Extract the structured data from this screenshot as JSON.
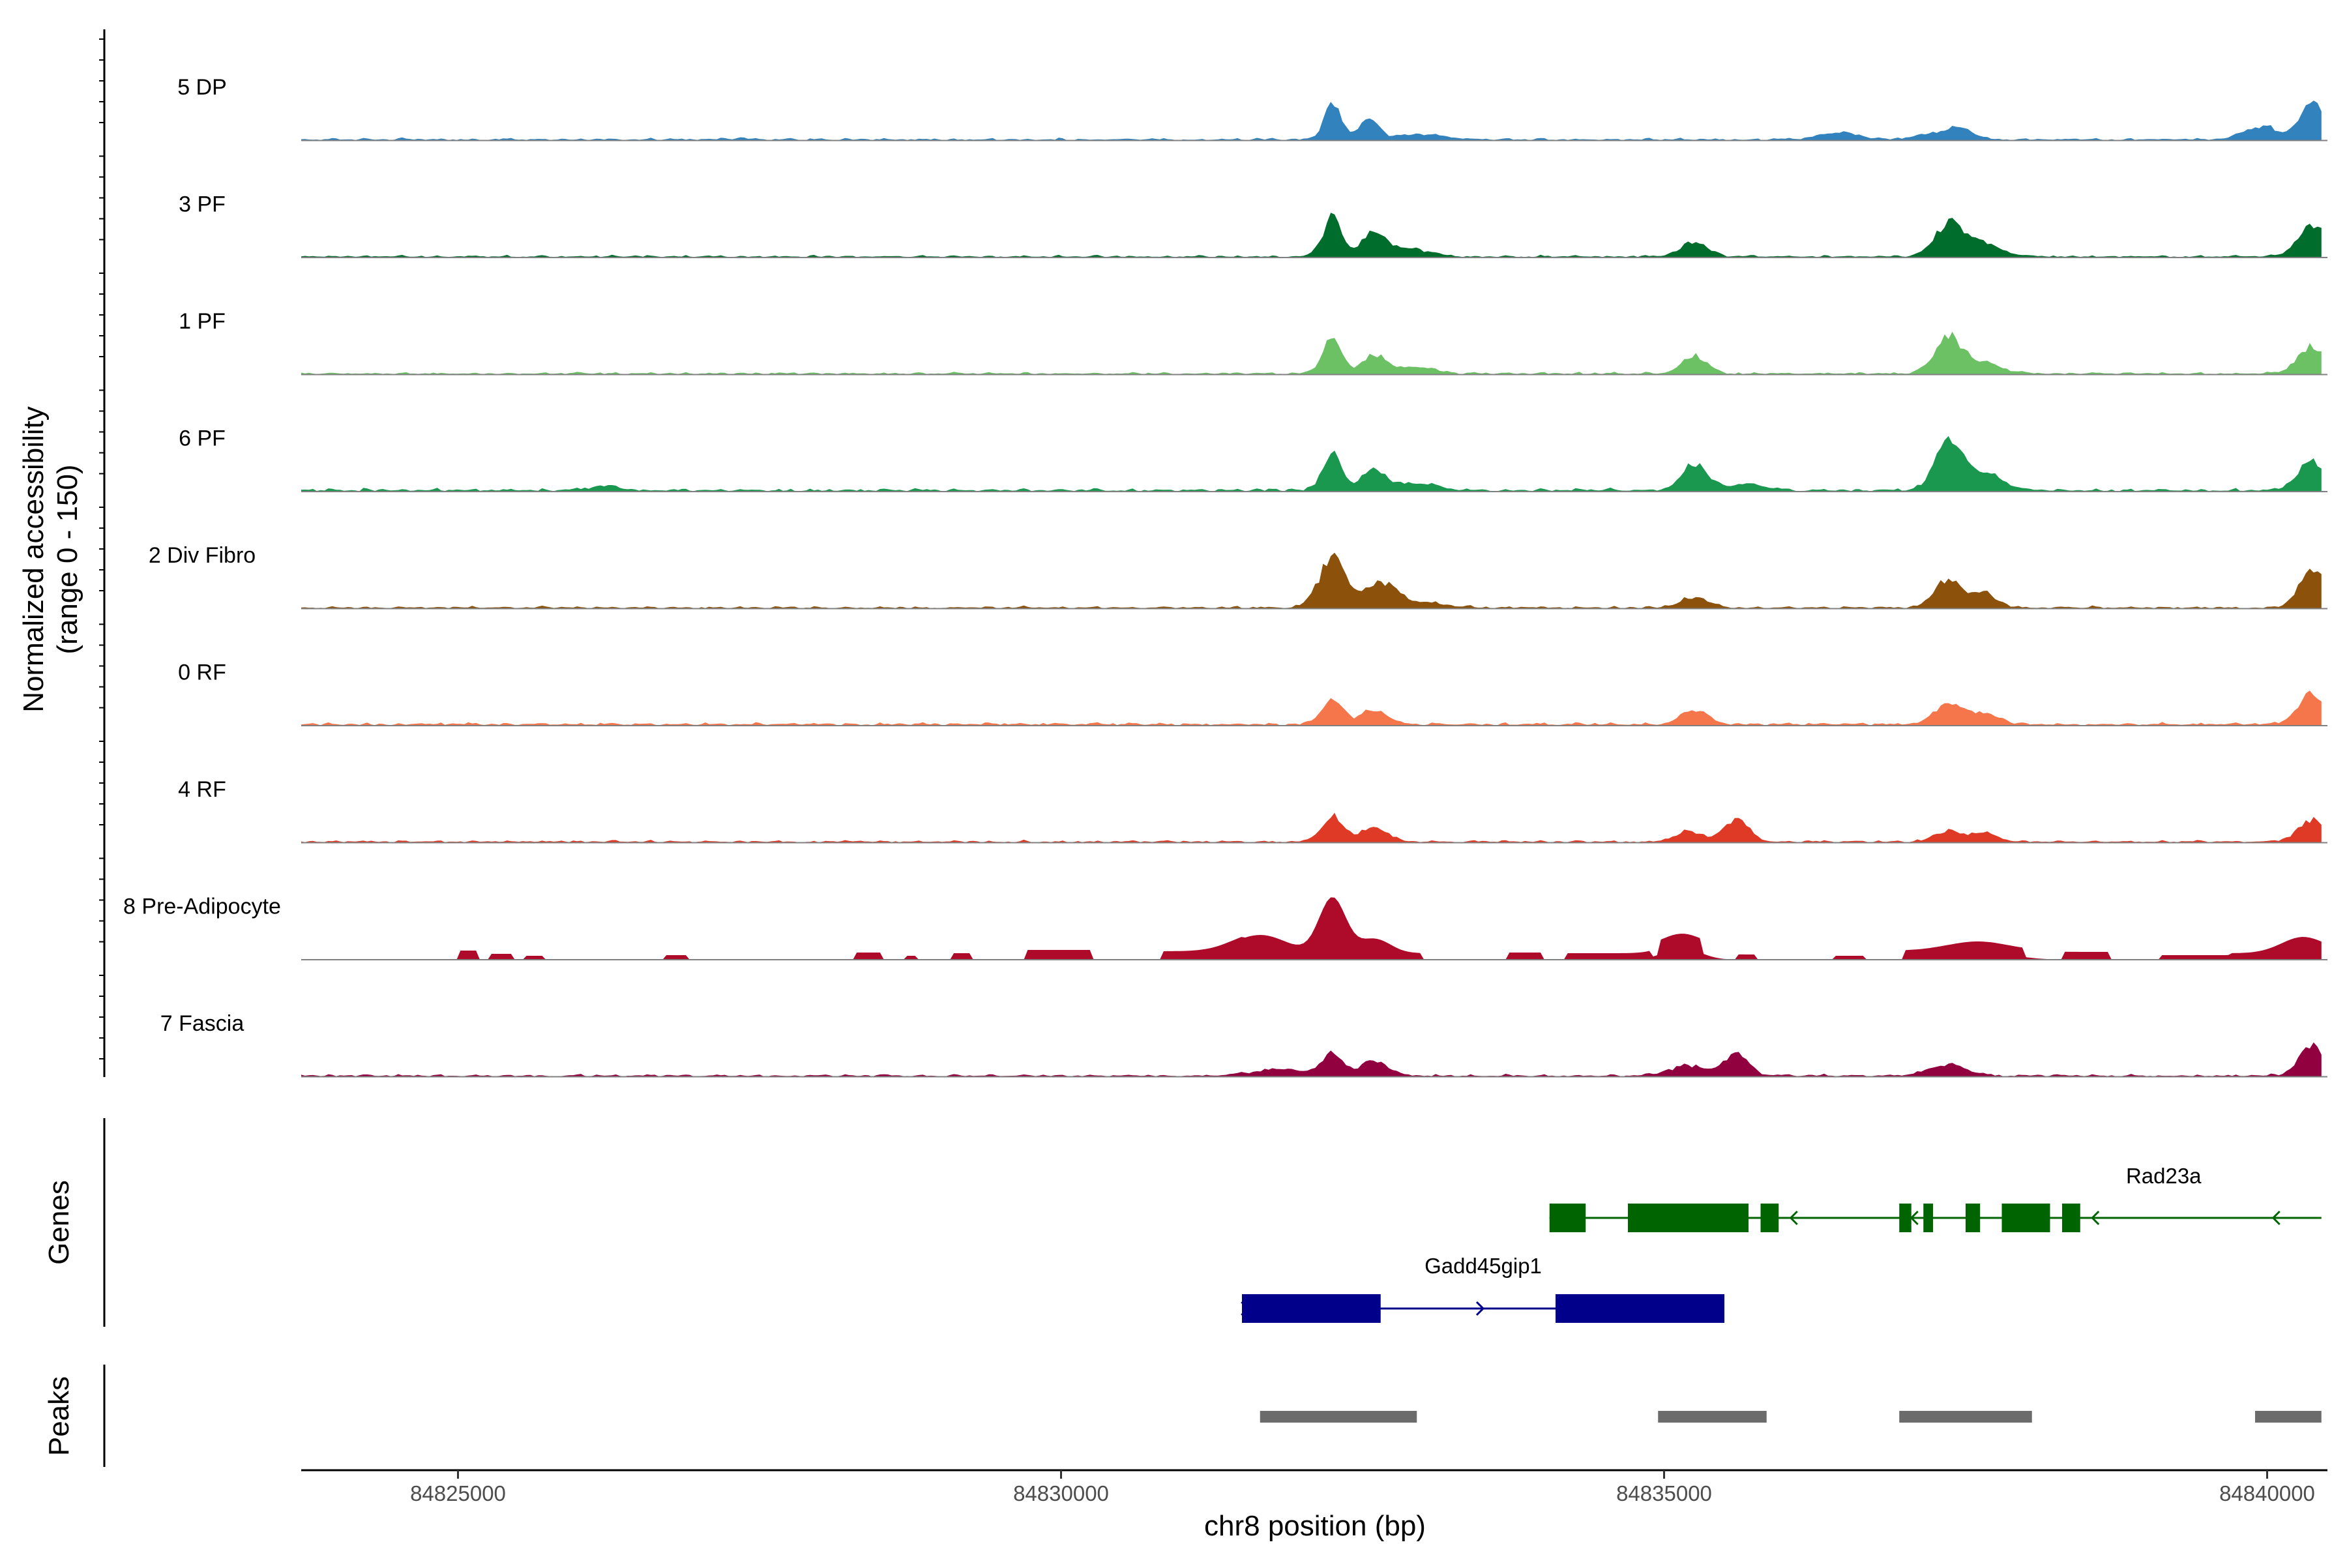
{
  "chart_data": {
    "type": "area",
    "title": "",
    "xlabel": "chr8 position (bp)",
    "ylabel_line1": "Normalized accessibility",
    "ylabel_line2": "(range 0 - 150)",
    "ylim": [
      0,
      150
    ],
    "xlim": [
      84823700,
      84840500
    ],
    "xticks": [
      84825000,
      84830000,
      84835000,
      84840000
    ],
    "xtick_labels": [
      "84825000",
      "84830000",
      "84835000",
      "84840000"
    ],
    "region_start": 84823700,
    "region_end": 84840450,
    "tracks": [
      {
        "name": "5 DP",
        "color": "#3182bd",
        "base": 3,
        "bumps": [
          [
            84827300,
            2,
            90
          ],
          [
            84832250,
            55,
            70
          ],
          [
            84832550,
            28,
            90
          ],
          [
            84833000,
            8,
            200
          ],
          [
            84836450,
            11,
            160
          ],
          [
            84837450,
            17,
            110
          ],
          [
            84837200,
            8,
            140
          ],
          [
            84839950,
            20,
            140
          ],
          [
            84840380,
            60,
            100
          ]
        ]
      },
      {
        "name": "3 PF",
        "color": "#006d2c",
        "base": 3,
        "bumps": [
          [
            84832250,
            60,
            80
          ],
          [
            84832600,
            38,
            100
          ],
          [
            84832900,
            12,
            150
          ],
          [
            84835250,
            22,
            110
          ],
          [
            84837350,
            45,
            110
          ],
          [
            84837600,
            22,
            170
          ],
          [
            84840380,
            48,
            120
          ]
        ]
      },
      {
        "name": "1 PF",
        "color": "#6cc165",
        "base": 3,
        "bumps": [
          [
            84832250,
            55,
            80
          ],
          [
            84832600,
            28,
            100
          ],
          [
            84832950,
            10,
            150
          ],
          [
            84835250,
            28,
            100
          ],
          [
            84837350,
            50,
            110
          ],
          [
            84837600,
            18,
            170
          ],
          [
            84840380,
            42,
            120
          ]
        ]
      },
      {
        "name": "6 PF",
        "color": "#1a9850",
        "base": 4,
        "bumps": [
          [
            84826200,
            6,
            120
          ],
          [
            84832250,
            55,
            80
          ],
          [
            84832600,
            33,
            100
          ],
          [
            84832950,
            11,
            150
          ],
          [
            84835250,
            40,
            110
          ],
          [
            84835700,
            10,
            140
          ],
          [
            84837350,
            70,
            110
          ],
          [
            84837650,
            28,
            150
          ],
          [
            84840380,
            45,
            120
          ]
        ]
      },
      {
        "name": "2 Div Fibro",
        "color": "#8c510a",
        "base": 3,
        "bumps": [
          [
            84832250,
            75,
            110
          ],
          [
            84832650,
            38,
            130
          ],
          [
            84833000,
            8,
            180
          ],
          [
            84835250,
            16,
            120
          ],
          [
            84837350,
            42,
            110
          ],
          [
            84837650,
            22,
            110
          ],
          [
            84840380,
            60,
            110
          ]
        ]
      },
      {
        "name": "0 RF",
        "color": "#f4764a",
        "base": 4,
        "bumps": [
          [
            84832250,
            38,
            90
          ],
          [
            84832600,
            22,
            110
          ],
          [
            84835250,
            22,
            110
          ],
          [
            84837350,
            32,
            110
          ],
          [
            84837650,
            18,
            120
          ],
          [
            84840380,
            45,
            120
          ]
        ]
      },
      {
        "name": "4 RF",
        "color": "#de3a26",
        "base": 3,
        "bumps": [
          [
            84832250,
            40,
            90
          ],
          [
            84832600,
            22,
            110
          ],
          [
            84835200,
            16,
            110
          ],
          [
            84835600,
            35,
            100
          ],
          [
            84837350,
            16,
            110
          ],
          [
            84837650,
            14,
            110
          ],
          [
            84840380,
            33,
            120
          ]
        ]
      },
      {
        "name": "8 Pre-Adipocyte",
        "color": "#ae0a2a",
        "base": 0,
        "bumps": [
          [
            84831650,
            28,
            220
          ],
          [
            84832250,
            85,
            110
          ],
          [
            84832600,
            22,
            130
          ],
          [
            84835150,
            18,
            150
          ],
          [
            84837600,
            14,
            250
          ],
          [
            84840300,
            25,
            180
          ]
        ],
        "steps": [
          [
            84825000,
            84825150,
            14
          ],
          [
            84825250,
            84825450,
            9
          ],
          [
            84825550,
            84825700,
            6
          ],
          [
            84826700,
            84826900,
            7
          ],
          [
            84828300,
            84828500,
            11
          ],
          [
            84828700,
            84828800,
            6
          ],
          [
            84829100,
            84829250,
            10
          ],
          [
            84829700,
            84830250,
            15
          ],
          [
            84830850,
            84831500,
            13
          ],
          [
            84831500,
            84833000,
            10
          ],
          [
            84833700,
            84834000,
            11
          ],
          [
            84834200,
            84834900,
            10
          ],
          [
            84834950,
            84835300,
            22
          ],
          [
            84835600,
            84835750,
            8
          ],
          [
            84836400,
            84836650,
            6
          ],
          [
            84837000,
            84838000,
            14
          ],
          [
            84838300,
            84838700,
            12
          ],
          [
            84839100,
            84839700,
            7
          ],
          [
            84839700,
            84840450,
            10
          ]
        ]
      },
      {
        "name": "7 Fascia",
        "color": "#91003f",
        "base": 3,
        "bumps": [
          [
            84831800,
            10,
            220
          ],
          [
            84832250,
            32,
            90
          ],
          [
            84832600,
            22,
            110
          ],
          [
            84835200,
            16,
            150
          ],
          [
            84835600,
            34,
            100
          ],
          [
            84837350,
            18,
            150
          ],
          [
            84840380,
            46,
            110
          ]
        ]
      }
    ],
    "genes_track_label": "Genes",
    "genes": [
      {
        "name": "Rad23a",
        "strand": "-",
        "color": "#006400",
        "start": 84834050,
        "end": 84840450,
        "exons": [
          [
            84834050,
            84834350
          ],
          [
            84834700,
            84835700
          ],
          [
            84835800,
            84835950
          ],
          [
            84836950,
            84837050
          ],
          [
            84837150,
            84837230
          ],
          [
            84837500,
            84837620
          ],
          [
            84837800,
            84838200
          ],
          [
            84838300,
            84838450
          ]
        ],
        "arrows": [
          84836050,
          84837050,
          84838550,
          84840050
        ]
      },
      {
        "name": "Gadd45gip1",
        "strand": "+",
        "color": "#00008b",
        "start": 84831500,
        "end": 84835500,
        "exons": [
          [
            84831500,
            84832650
          ],
          [
            84834100,
            84835500
          ]
        ],
        "arrows": [
          84831550,
          84833500
        ]
      }
    ],
    "peaks_track_label": "Peaks",
    "peak_color": "#6b6b6b",
    "peaks": [
      [
        84831650,
        84832950
      ],
      [
        84834950,
        84835850
      ],
      [
        84836950,
        84838050
      ],
      [
        84839900,
        84840450
      ]
    ]
  }
}
